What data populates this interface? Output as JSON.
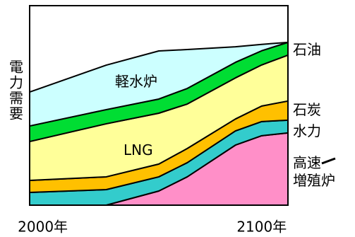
{
  "chart_data": {
    "type": "stacked_area",
    "y_label": "電力需要",
    "x": [
      1994,
      2029,
      2053,
      2066,
      2088,
      2100,
      2112
    ],
    "xlim": [
      1994,
      2112
    ],
    "xticks": [
      {
        "value": 2000,
        "label": "2000年"
      },
      {
        "value": 2100,
        "label": "2100年"
      }
    ],
    "ylim": [
      0,
      100
    ],
    "series": [
      {
        "name": "高速\n増殖炉",
        "color": "#ff8fc8",
        "values": [
          0,
          0,
          7.1,
          14.2,
          30.1,
          34.8,
          36.2
        ]
      },
      {
        "name": "水力",
        "color": "#33cccc",
        "values": [
          6.4,
          7.8,
          7.1,
          7.1,
          7.1,
          7.1,
          6.4
        ]
      },
      {
        "name": "石炭",
        "color": "#ffc000",
        "values": [
          6.0,
          6.4,
          6.4,
          7.1,
          6.0,
          7.8,
          9.6
        ]
      },
      {
        "name": "LNG",
        "color": "#ffff99",
        "values": [
          19.5,
          26.6,
          25.5,
          22.3,
          20.6,
          20.6,
          23.0
        ]
      },
      {
        "name": "石油",
        "color": "#00dd33",
        "values": [
          7.8,
          7.1,
          7.1,
          7.8,
          7.8,
          7.1,
          6.4
        ]
      },
      {
        "name": "軽水炉",
        "color": "#ccffff",
        "values": [
          17.0,
          22.3,
          24.1,
          19.5,
          7.8,
          3.2,
          0
        ]
      }
    ]
  }
}
